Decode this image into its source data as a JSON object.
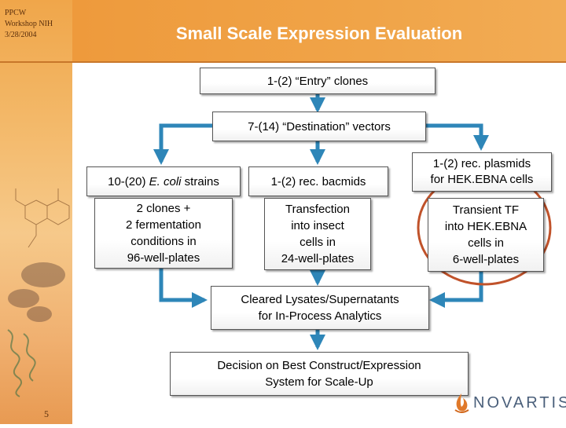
{
  "header": {
    "meta_lines": [
      "PPCW",
      "Workshop NIH",
      "3/28/2004"
    ],
    "title": "Small Scale Expression Evaluation"
  },
  "flow": {
    "entry_clones": "1-(2) “Entry” clones",
    "destination_vectors": "7-(14) “Destination” vectors",
    "ecoli": {
      "prefix": "10-(20) ",
      "italic": "E. coli",
      "suffix": " strains"
    },
    "bacmids": "1-(2) rec. bacmids",
    "plasmids": [
      "1-(2) rec. plasmids",
      "for HEK.EBNA cells"
    ],
    "clones_fermentation": [
      "2 clones +",
      "2 fermentation",
      "conditions in",
      "96-well-plates"
    ],
    "transfection": [
      "Transfection",
      "into insect",
      "cells in",
      "24-well-plates"
    ],
    "transient_tf": [
      "Transient TF",
      "into HEK.EBNA",
      "cells in",
      "6-well-plates"
    ],
    "lysates": [
      "Cleared Lysates/Supernatants",
      "for In-Process Analytics"
    ],
    "decision": [
      "Decision on Best Construct/Expression",
      "System for Scale-Up"
    ]
  },
  "footer": {
    "page_number": "5",
    "logo_text": "NOVARTIS"
  },
  "colors": {
    "arrow": "#2e86b8",
    "highlight_circle": "#c0522a",
    "header_band": "#ee9a3c",
    "title_text": "#ffffff"
  }
}
